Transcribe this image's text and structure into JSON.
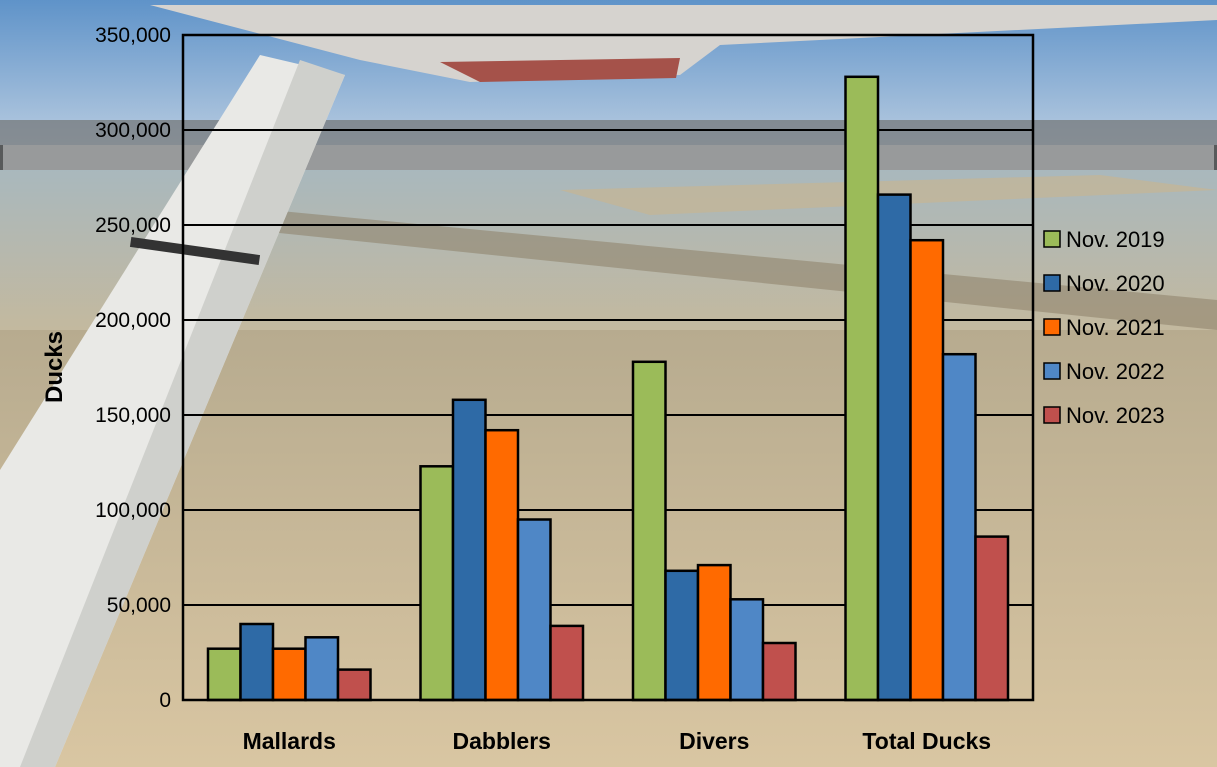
{
  "chart_data": {
    "type": "bar",
    "title": "",
    "xlabel": "",
    "ylabel": "Ducks",
    "categories": [
      "Mallards",
      "Dabblers",
      "Divers",
      "Total Ducks"
    ],
    "series": [
      {
        "name": "Nov. 2019",
        "color": "#9BBB59",
        "values": [
          27000,
          123000,
          178000,
          328000
        ]
      },
      {
        "name": "Nov. 2020",
        "color": "#2E6AA6",
        "values": [
          40000,
          158000,
          68000,
          266000
        ]
      },
      {
        "name": "Nov. 2021",
        "color": "#FF6A00",
        "values": [
          27000,
          142000,
          71000,
          242000
        ]
      },
      {
        "name": "Nov. 2022",
        "color": "#4F87C6",
        "values": [
          33000,
          95000,
          53000,
          182000
        ]
      },
      {
        "name": "Nov. 2023",
        "color": "#C0504D",
        "values": [
          16000,
          39000,
          30000,
          86000
        ]
      }
    ],
    "ylim": [
      0,
      350000
    ],
    "yticks": [
      0,
      50000,
      100000,
      150000,
      200000,
      250000,
      300000,
      350000
    ],
    "ytick_labels": [
      "0",
      "50,000",
      "100,000",
      "150,000",
      "200,000",
      "250,000",
      "300,000",
      "350,000"
    ],
    "grid": true,
    "legend_position": "right"
  }
}
